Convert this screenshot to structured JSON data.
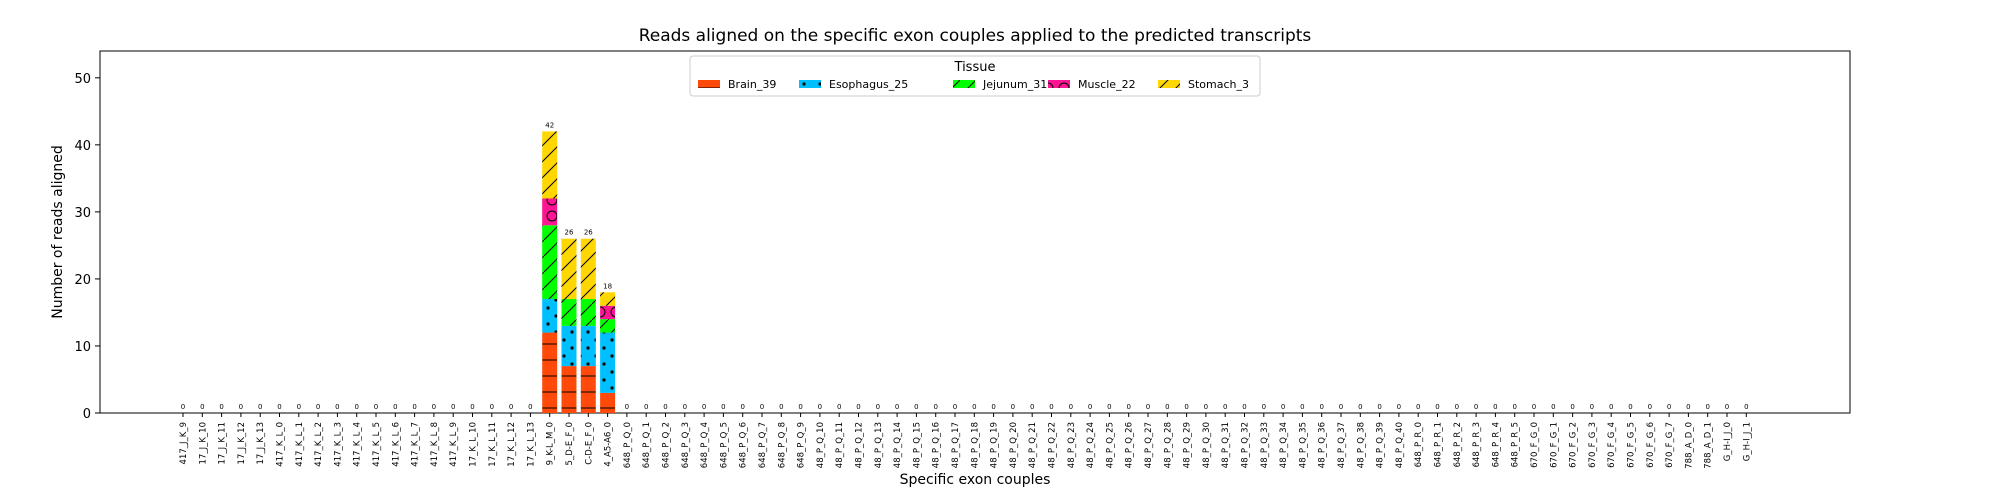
{
  "colors": {
    "Brain_39": "#ff4a0a",
    "Esophagus_25": "#00bfff",
    "Jejunum_31": "#00ff00",
    "Muscle_22": "#ff1493",
    "Stomach_3": "#ffd700"
  },
  "chart_data": {
    "type": "bar",
    "stacked": true,
    "title": "Reads aligned on the specific exon couples applied to the predicted transcripts",
    "xlabel": "Specific exon couples",
    "ylabel": "Number of reads aligned",
    "ylim": [
      0,
      54
    ],
    "yticks": [
      0,
      10,
      20,
      30,
      40,
      50
    ],
    "legend": {
      "title": "Tissue",
      "position": "top-center"
    },
    "categories": [
      "417_J_K_9",
      "17_J_K_10",
      "17_J_K_11",
      "17_J_K_12",
      "17_J_K_13",
      "417_K_L_0",
      "417_K_L_1",
      "417_K_L_2",
      "417_K_L_3",
      "417_K_L_4",
      "417_K_L_5",
      "417_K_L_6",
      "417_K_L_7",
      "417_K_L_8",
      "417_K_L_9",
      "17_K_L_10",
      "17_K_L_11",
      "17_K_L_12",
      "17_K_L_13",
      "9_K-L_M_0",
      "5_D-E_F_0",
      "C-D-E_F_0",
      "4_A5-A6_0",
      "648_P_Q_0",
      "648_P_Q_1",
      "648_P_Q_2",
      "648_P_Q_3",
      "648_P_Q_4",
      "648_P_Q_5",
      "648_P_Q_6",
      "648_P_Q_7",
      "648_P_Q_8",
      "648_P_Q_9",
      "48_P_Q_10",
      "48_P_Q_11",
      "48_P_Q_12",
      "48_P_Q_13",
      "48_P_Q_14",
      "48_P_Q_15",
      "48_P_Q_16",
      "48_P_Q_17",
      "48_P_Q_18",
      "48_P_Q_19",
      "48_P_Q_20",
      "48_P_Q_21",
      "48_P_Q_22",
      "48_P_Q_23",
      "48_P_Q_24",
      "48_P_Q_25",
      "48_P_Q_26",
      "48_P_Q_27",
      "48_P_Q_28",
      "48_P_Q_29",
      "48_P_Q_30",
      "48_P_Q_31",
      "48_P_Q_32",
      "48_P_Q_33",
      "48_P_Q_34",
      "48_P_Q_35",
      "48_P_Q_36",
      "48_P_Q_37",
      "48_P_Q_38",
      "48_P_Q_39",
      "48_P_Q_40",
      "648_P_R_0",
      "648_P_R_1",
      "648_P_R_2",
      "648_P_R_3",
      "648_P_R_4",
      "648_P_R_5",
      "670_F_G_0",
      "670_F_G_1",
      "670_F_G_2",
      "670_F_G_3",
      "670_F_G_4",
      "670_F_G_5",
      "670_F_G_6",
      "670_F_G_7",
      "788_A_D_0",
      "788_A_D_1",
      "G_H-I_J_0",
      "G_H-I_J_1"
    ],
    "series": [
      {
        "name": "Brain_39",
        "values": [
          0,
          0,
          0,
          0,
          0,
          0,
          0,
          0,
          0,
          0,
          0,
          0,
          0,
          0,
          0,
          0,
          0,
          0,
          0,
          12,
          7,
          7,
          3,
          0,
          0,
          0,
          0,
          0,
          0,
          0,
          0,
          0,
          0,
          0,
          0,
          0,
          0,
          0,
          0,
          0,
          0,
          0,
          0,
          0,
          0,
          0,
          0,
          0,
          0,
          0,
          0,
          0,
          0,
          0,
          0,
          0,
          0,
          0,
          0,
          0,
          0,
          0,
          0,
          0,
          0,
          0,
          0,
          0,
          0,
          0,
          0,
          0,
          0,
          0,
          0,
          0,
          0,
          0,
          0,
          0,
          0,
          0
        ]
      },
      {
        "name": "Esophagus_25",
        "values": [
          0,
          0,
          0,
          0,
          0,
          0,
          0,
          0,
          0,
          0,
          0,
          0,
          0,
          0,
          0,
          0,
          0,
          0,
          0,
          5,
          6,
          6,
          9,
          0,
          0,
          0,
          0,
          0,
          0,
          0,
          0,
          0,
          0,
          0,
          0,
          0,
          0,
          0,
          0,
          0,
          0,
          0,
          0,
          0,
          0,
          0,
          0,
          0,
          0,
          0,
          0,
          0,
          0,
          0,
          0,
          0,
          0,
          0,
          0,
          0,
          0,
          0,
          0,
          0,
          0,
          0,
          0,
          0,
          0,
          0,
          0,
          0,
          0,
          0,
          0,
          0,
          0,
          0,
          0,
          0,
          0,
          0
        ]
      },
      {
        "name": "Jejunum_31",
        "values": [
          0,
          0,
          0,
          0,
          0,
          0,
          0,
          0,
          0,
          0,
          0,
          0,
          0,
          0,
          0,
          0,
          0,
          0,
          0,
          11,
          4,
          4,
          2,
          0,
          0,
          0,
          0,
          0,
          0,
          0,
          0,
          0,
          0,
          0,
          0,
          0,
          0,
          0,
          0,
          0,
          0,
          0,
          0,
          0,
          0,
          0,
          0,
          0,
          0,
          0,
          0,
          0,
          0,
          0,
          0,
          0,
          0,
          0,
          0,
          0,
          0,
          0,
          0,
          0,
          0,
          0,
          0,
          0,
          0,
          0,
          0,
          0,
          0,
          0,
          0,
          0,
          0,
          0,
          0,
          0,
          0,
          0
        ]
      },
      {
        "name": "Muscle_22",
        "values": [
          0,
          0,
          0,
          0,
          0,
          0,
          0,
          0,
          0,
          0,
          0,
          0,
          0,
          0,
          0,
          0,
          0,
          0,
          0,
          4,
          0,
          0,
          2,
          0,
          0,
          0,
          0,
          0,
          0,
          0,
          0,
          0,
          0,
          0,
          0,
          0,
          0,
          0,
          0,
          0,
          0,
          0,
          0,
          0,
          0,
          0,
          0,
          0,
          0,
          0,
          0,
          0,
          0,
          0,
          0,
          0,
          0,
          0,
          0,
          0,
          0,
          0,
          0,
          0,
          0,
          0,
          0,
          0,
          0,
          0,
          0,
          0,
          0,
          0,
          0,
          0,
          0,
          0,
          0,
          0,
          0,
          0
        ]
      },
      {
        "name": "Stomach_3",
        "values": [
          0,
          0,
          0,
          0,
          0,
          0,
          0,
          0,
          0,
          0,
          0,
          0,
          0,
          0,
          0,
          0,
          0,
          0,
          0,
          10,
          9,
          9,
          2,
          0,
          0,
          0,
          0,
          0,
          0,
          0,
          0,
          0,
          0,
          0,
          0,
          0,
          0,
          0,
          0,
          0,
          0,
          0,
          0,
          0,
          0,
          0,
          0,
          0,
          0,
          0,
          0,
          0,
          0,
          0,
          0,
          0,
          0,
          0,
          0,
          0,
          0,
          0,
          0,
          0,
          0,
          0,
          0,
          0,
          0,
          0,
          0,
          0,
          0,
          0,
          0,
          0,
          0,
          0,
          0,
          0,
          0,
          0
        ]
      }
    ],
    "totals": [
      0,
      0,
      0,
      0,
      0,
      0,
      0,
      0,
      0,
      0,
      0,
      0,
      0,
      0,
      0,
      0,
      0,
      0,
      0,
      42,
      26,
      26,
      18,
      0,
      0,
      0,
      0,
      0,
      0,
      0,
      0,
      0,
      0,
      0,
      0,
      0,
      0,
      0,
      0,
      0,
      0,
      0,
      0,
      0,
      0,
      0,
      0,
      0,
      0,
      0,
      0,
      0,
      0,
      0,
      0,
      0,
      0,
      0,
      0,
      0,
      0,
      0,
      0,
      0,
      0,
      0,
      0,
      0,
      0,
      0,
      0,
      0,
      0,
      0,
      0,
      0,
      0,
      0,
      0,
      0,
      0,
      0
    ]
  }
}
